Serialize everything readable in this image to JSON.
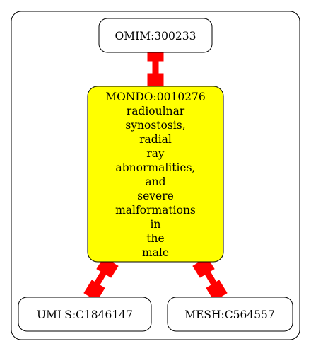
{
  "nodes": {
    "omim": {
      "label": "OMIM:300233"
    },
    "mondo": {
      "label_lines": [
        "MONDO:0010276",
        "radioulnar",
        "synostosis,",
        "radial",
        "ray",
        "abnormalities,",
        "and",
        "severe",
        "malformations",
        "in",
        "the",
        "male"
      ],
      "fill": "#ffff00"
    },
    "umls": {
      "label": "UMLS:C1846147"
    },
    "mesh": {
      "label": "MESH:C564557"
    }
  },
  "edges": [
    {
      "from": "omim",
      "to": "mondo",
      "color": "#ff0000"
    },
    {
      "from": "mondo",
      "to": "umls",
      "color": "#ff0000"
    },
    {
      "from": "mondo",
      "to": "mesh",
      "color": "#ff0000"
    }
  ]
}
